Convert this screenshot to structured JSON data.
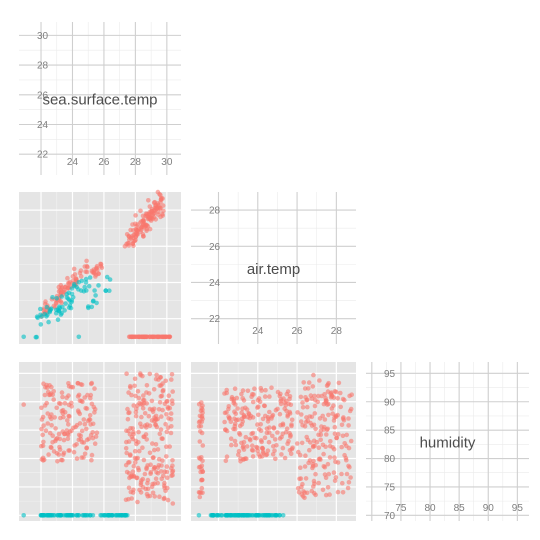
{
  "chart_data": {
    "type": "scatter-matrix",
    "variables": [
      "sea.surface.temp",
      "air.temp",
      "humidity"
    ],
    "series_colors": [
      "#F8766D",
      "#00BFC4"
    ],
    "diagonal": [
      {
        "label": "sea.surface.temp",
        "range": [
          20.6,
          30.9
        ],
        "ticks": [
          22,
          24,
          26,
          28,
          30
        ],
        "tick_labels": [
          "22",
          "24",
          "26",
          "28",
          "30"
        ]
      },
      {
        "label": "air.temp",
        "range": [
          20.6,
          29.0
        ],
        "ticks": [
          22,
          24,
          26,
          28
        ],
        "tick_labels": [
          "22",
          "24",
          "26",
          "28"
        ]
      },
      {
        "label": "humidity",
        "range": [
          69,
          97
        ],
        "ticks": [
          70,
          75,
          80,
          85,
          90,
          95
        ],
        "tick_labels": [
          "70",
          "75",
          "80",
          "85",
          "90",
          "95"
        ]
      }
    ],
    "panels": [
      {
        "name": "air-temp-vs-sea-surface-temp",
        "x_var": "sea.surface.temp",
        "y_var": "air.temp",
        "x_range": [
          20.6,
          30.9
        ],
        "y_range": [
          20.6,
          29.0
        ],
        "groups": [
          {
            "color": "#F8766D",
            "clusters": [
              {
                "x": [
                  22.0,
                  25.0
                ],
                "y_center": [
                  22.3,
                  24.9
                ],
                "y_spread": 0.25,
                "n": 70,
                "seed": 11
              },
              {
                "x": [
                  25.2,
                  26.3
                ],
                "y_center": [
                  24.6,
                  25.0
                ],
                "y_spread": 0.2,
                "n": 18,
                "seed": 12
              },
              {
                "x": [
                  27.8,
                  29.8
                ],
                "y_center": [
                  26.7,
                  28.4
                ],
                "y_spread": 0.35,
                "n": 110,
                "seed": 13
              },
              {
                "x": [
                  27.3,
                  28.0
                ],
                "y_center": [
                  26.2,
                  26.8
                ],
                "y_spread": 0.25,
                "n": 14,
                "seed": 14
              },
              {
                "x": [
                  27.6,
                  30.3
                ],
                "y_center": [
                  21.0,
                  21.0
                ],
                "y_spread": 0.0,
                "n": 65,
                "seed": 15
              }
            ]
          },
          {
            "color": "#00BFC4",
            "clusters": [
              {
                "x": [
                  21.6,
                  25.2
                ],
                "y_center": [
                  21.7,
                  24.0
                ],
                "y_spread": 0.35,
                "n": 60,
                "seed": 21
              },
              {
                "x": [
                  25.0,
                  26.8
                ],
                "y_center": [
                  22.8,
                  24.8
                ],
                "y_spread": 0.3,
                "n": 14,
                "seed": 22
              },
              {
                "x": [
                  20.9,
                  20.9
                ],
                "y_center": [
                  21.0,
                  21.0
                ],
                "y_spread": 0.0,
                "n": 1,
                "seed": 23
              },
              {
                "x": [
                  24.4,
                  24.4
                ],
                "y_center": [
                  21.0,
                  21.0
                ],
                "y_spread": 0.0,
                "n": 1,
                "seed": 24
              }
            ]
          }
        ]
      },
      {
        "name": "humidity-vs-sea-surface-temp",
        "x_var": "sea.surface.temp",
        "y_var": "humidity",
        "x_range": [
          20.6,
          30.9
        ],
        "y_range": [
          69,
          97
        ],
        "groups": [
          {
            "color": "#F8766D",
            "clusters": [
              {
                "x": [
                  22.0,
                  25.6
                ],
                "y": [
                  79.5,
                  93.5
                ],
                "n": 160,
                "seed": 31
              },
              {
                "x": [
                  27.4,
                  30.4
                ],
                "y": [
                  72.0,
                  95.0
                ],
                "n": 230,
                "seed": 32
              },
              {
                "x": [
                  20.9,
                  20.9
                ],
                "y": [
                  89.5,
                  89.5
                ],
                "n": 1,
                "seed": 33
              }
            ]
          },
          {
            "color": "#00BFC4",
            "clusters": [
              {
                "x": [
                  21.9,
                  27.5
                ],
                "y": [
                  70.0,
                  70.0
                ],
                "n": 90,
                "seed": 34
              },
              {
                "x": [
                  20.9,
                  20.9
                ],
                "y": [
                  70.0,
                  70.0
                ],
                "n": 1,
                "seed": 35
              }
            ]
          }
        ]
      },
      {
        "name": "humidity-vs-air-temp",
        "x_var": "air.temp",
        "y_var": "humidity",
        "x_range": [
          20.6,
          29.0
        ],
        "y_range": [
          69,
          97
        ],
        "groups": [
          {
            "color": "#F8766D",
            "clusters": [
              {
                "x": [
                  22.3,
                  25.8
                ],
                "y": [
                  79.5,
                  92.5
                ],
                "n": 200,
                "seed": 41
              },
              {
                "x": [
                  26.0,
                  28.8
                ],
                "y": [
                  73.0,
                  93.5
                ],
                "n": 190,
                "seed": 42
              },
              {
                "x": [
                  21.0,
                  21.2
                ],
                "y": [
                  73.0,
                  90.0
                ],
                "n": 40,
                "seed": 43
              },
              {
                "x": [
                  26.8,
                  27.2
                ],
                "y": [
                  93.5,
                  95.0
                ],
                "n": 2,
                "seed": 44
              }
            ]
          },
          {
            "color": "#00BFC4",
            "clusters": [
              {
                "x": [
                  21.6,
                  25.3
                ],
                "y": [
                  70.0,
                  70.0
                ],
                "n": 90,
                "seed": 45
              },
              {
                "x": [
                  21.0,
                  21.0
                ],
                "y": [
                  70.0,
                  70.0
                ],
                "n": 1,
                "seed": 46
              }
            ]
          }
        ]
      }
    ]
  }
}
